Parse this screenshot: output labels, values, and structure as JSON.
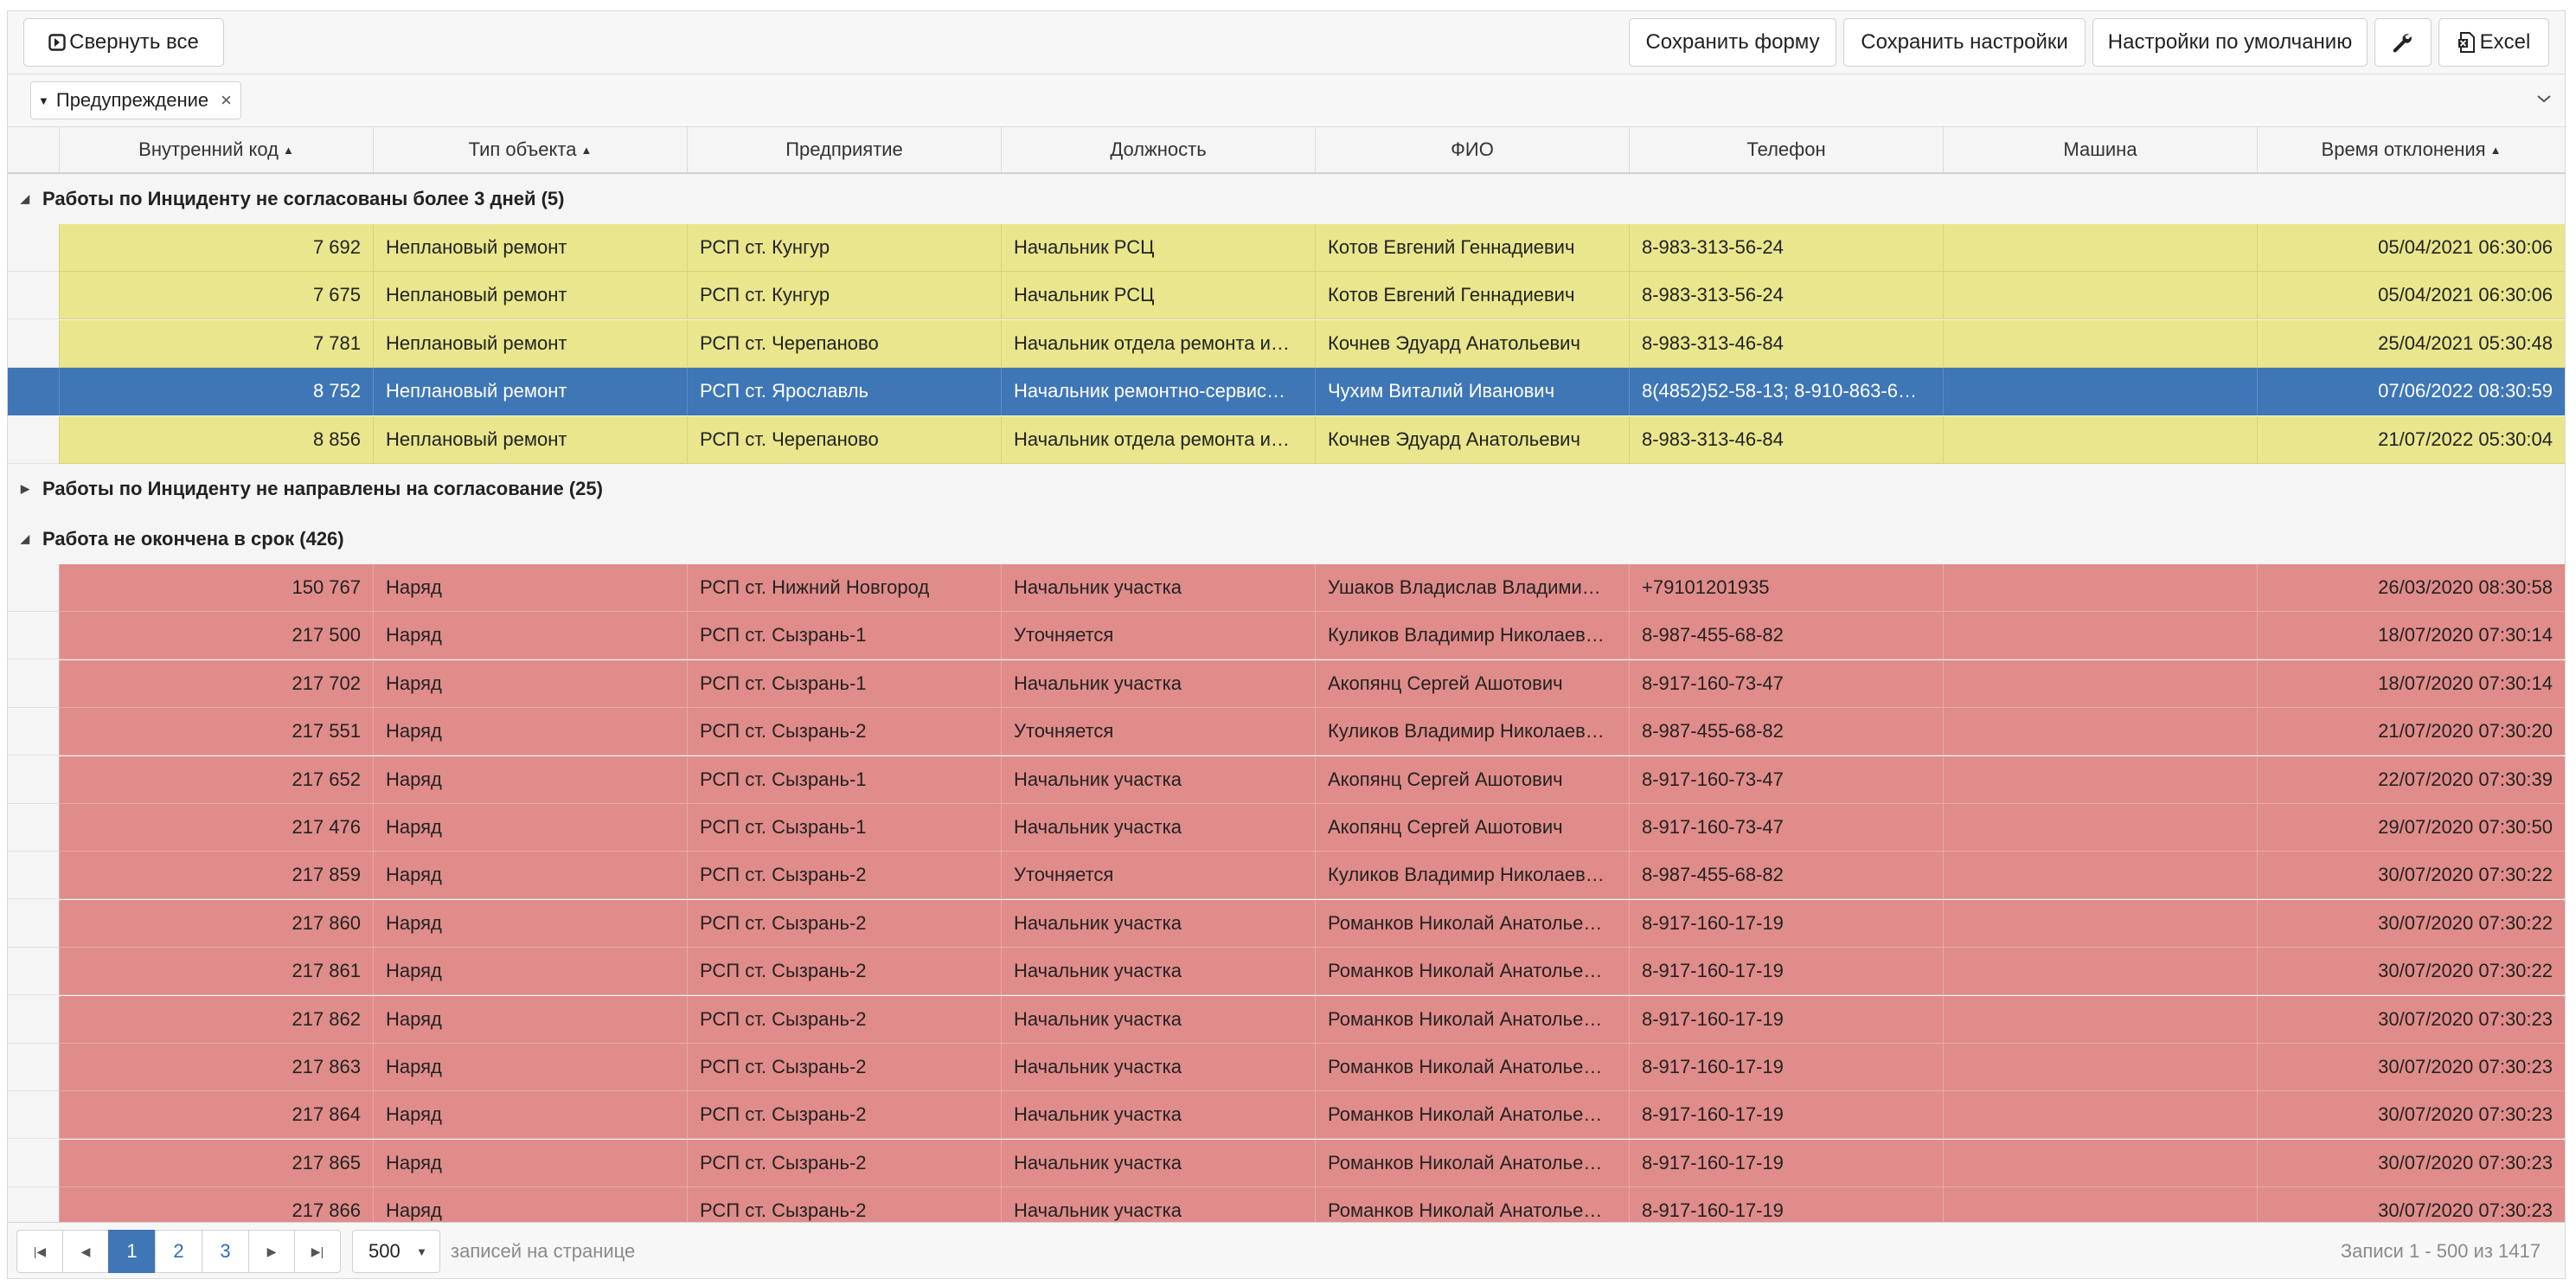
{
  "toolbar": {
    "collapse_label": "Свернуть все",
    "save_form_label": "Сохранить форму",
    "save_settings_label": "Сохранить настройки",
    "defaults_label": "Настройки по умолчанию",
    "excel_label": "Excel",
    "wrench_icon": "wrench-icon"
  },
  "filter": {
    "chip_label": "Предупреждение"
  },
  "columns": [
    {
      "label": "Внутренний код",
      "sorted": true
    },
    {
      "label": "Тип объекта",
      "sorted": true
    },
    {
      "label": "Предприятие",
      "sorted": false
    },
    {
      "label": "Должность",
      "sorted": false
    },
    {
      "label": "ФИО",
      "sorted": false
    },
    {
      "label": "Телефон",
      "sorted": false
    },
    {
      "label": "Машина",
      "sorted": false
    },
    {
      "label": "Время отклонения",
      "sorted": true
    }
  ],
  "groups": [
    {
      "label": "Работы по Инциденту не согласованы более 3 дней (5)",
      "expanded": true,
      "rows": [
        {
          "code": "7 692",
          "type": "Неплановый ремонт",
          "org": "РСП ст. Кунгур",
          "pos": "Начальник РСЦ",
          "fio": "Котов Евгений Геннадиевич",
          "phone": "8-983-313-56-24",
          "car": "",
          "time": "05/04/2021 06:30:06",
          "state": "yellow"
        },
        {
          "code": "7 675",
          "type": "Неплановый ремонт",
          "org": "РСП ст. Кунгур",
          "pos": "Начальник РСЦ",
          "fio": "Котов Евгений Геннадиевич",
          "phone": "8-983-313-56-24",
          "car": "",
          "time": "05/04/2021 06:30:06",
          "state": "yellow"
        },
        {
          "code": "7 781",
          "type": "Неплановый ремонт",
          "org": "РСП ст. Черепаново",
          "pos": "Начальник отдела ремонта и…",
          "fio": "Кочнев Эдуард Анатольевич",
          "phone": "8-983-313-46-84",
          "car": "",
          "time": "25/04/2021 05:30:48",
          "state": "yellow"
        },
        {
          "code": "8 752",
          "type": "Неплановый ремонт",
          "org": "РСП ст. Ярославль",
          "pos": "Начальник ремонтно-сервис…",
          "fio": "Чухим Виталий Иванович",
          "phone": "8(4852)52-58-13; 8-910-863-6…",
          "car": "",
          "time": "07/06/2022 08:30:59",
          "state": "sel"
        },
        {
          "code": "8 856",
          "type": "Неплановый ремонт",
          "org": "РСП ст. Черепаново",
          "pos": "Начальник отдела ремонта и…",
          "fio": "Кочнев Эдуард Анатольевич",
          "phone": "8-983-313-46-84",
          "car": "",
          "time": "21/07/2022 05:30:04",
          "state": "yellow"
        }
      ]
    },
    {
      "label": "Работы по Инциденту не направлены на согласование (25)",
      "expanded": false,
      "rows": []
    },
    {
      "label": "Работа не окончена в срок (426)",
      "expanded": true,
      "rows": [
        {
          "code": "150 767",
          "type": "Наряд",
          "org": "РСП ст. Нижний Новгород",
          "pos": "Начальник участка",
          "fio": "Ушаков Владислав Владими…",
          "phone": "+79101201935",
          "car": "",
          "time": "26/03/2020 08:30:58",
          "state": "red"
        },
        {
          "code": "217 500",
          "type": "Наряд",
          "org": "РСП ст. Сызрань-1",
          "pos": "Уточняется",
          "fio": "Куликов Владимир Николаев…",
          "phone": "8-987-455-68-82",
          "car": "",
          "time": "18/07/2020 07:30:14",
          "state": "red"
        },
        {
          "code": "217 702",
          "type": "Наряд",
          "org": "РСП ст. Сызрань-1",
          "pos": "Начальник участка",
          "fio": "Акопянц Сергей Ашотович",
          "phone": "8-917-160-73-47",
          "car": "",
          "time": "18/07/2020 07:30:14",
          "state": "red"
        },
        {
          "code": "217 551",
          "type": "Наряд",
          "org": "РСП ст. Сызрань-2",
          "pos": "Уточняется",
          "fio": "Куликов Владимир Николаев…",
          "phone": "8-987-455-68-82",
          "car": "",
          "time": "21/07/2020 07:30:20",
          "state": "red"
        },
        {
          "code": "217 652",
          "type": "Наряд",
          "org": "РСП ст. Сызрань-1",
          "pos": "Начальник участка",
          "fio": "Акопянц Сергей Ашотович",
          "phone": "8-917-160-73-47",
          "car": "",
          "time": "22/07/2020 07:30:39",
          "state": "red"
        },
        {
          "code": "217 476",
          "type": "Наряд",
          "org": "РСП ст. Сызрань-1",
          "pos": "Начальник участка",
          "fio": "Акопянц Сергей Ашотович",
          "phone": "8-917-160-73-47",
          "car": "",
          "time": "29/07/2020 07:30:50",
          "state": "red"
        },
        {
          "code": "217 859",
          "type": "Наряд",
          "org": "РСП ст. Сызрань-2",
          "pos": "Уточняется",
          "fio": "Куликов Владимир Николаев…",
          "phone": "8-987-455-68-82",
          "car": "",
          "time": "30/07/2020 07:30:22",
          "state": "red"
        },
        {
          "code": "217 860",
          "type": "Наряд",
          "org": "РСП ст. Сызрань-2",
          "pos": "Начальник участка",
          "fio": "Романков Николай Анатолье…",
          "phone": "8-917-160-17-19",
          "car": "",
          "time": "30/07/2020 07:30:22",
          "state": "red"
        },
        {
          "code": "217 861",
          "type": "Наряд",
          "org": "РСП ст. Сызрань-2",
          "pos": "Начальник участка",
          "fio": "Романков Николай Анатолье…",
          "phone": "8-917-160-17-19",
          "car": "",
          "time": "30/07/2020 07:30:22",
          "state": "red"
        },
        {
          "code": "217 862",
          "type": "Наряд",
          "org": "РСП ст. Сызрань-2",
          "pos": "Начальник участка",
          "fio": "Романков Николай Анатолье…",
          "phone": "8-917-160-17-19",
          "car": "",
          "time": "30/07/2020 07:30:23",
          "state": "red"
        },
        {
          "code": "217 863",
          "type": "Наряд",
          "org": "РСП ст. Сызрань-2",
          "pos": "Начальник участка",
          "fio": "Романков Николай Анатолье…",
          "phone": "8-917-160-17-19",
          "car": "",
          "time": "30/07/2020 07:30:23",
          "state": "red"
        },
        {
          "code": "217 864",
          "type": "Наряд",
          "org": "РСП ст. Сызрань-2",
          "pos": "Начальник участка",
          "fio": "Романков Николай Анатолье…",
          "phone": "8-917-160-17-19",
          "car": "",
          "time": "30/07/2020 07:30:23",
          "state": "red"
        },
        {
          "code": "217 865",
          "type": "Наряд",
          "org": "РСП ст. Сызрань-2",
          "pos": "Начальник участка",
          "fio": "Романков Николай Анатолье…",
          "phone": "8-917-160-17-19",
          "car": "",
          "time": "30/07/2020 07:30:23",
          "state": "red"
        },
        {
          "code": "217 866",
          "type": "Наряд",
          "org": "РСП ст. Сызрань-2",
          "pos": "Начальник участка",
          "fio": "Романков Николай Анатолье…",
          "phone": "8-917-160-17-19",
          "car": "",
          "time": "30/07/2020 07:30:23",
          "state": "red"
        }
      ]
    }
  ],
  "pager": {
    "pages": [
      "1",
      "2",
      "3"
    ],
    "current_page": "1",
    "page_size": "500",
    "page_size_label": "записей на странице",
    "records_info": "Записи 1 - 500 из 1417"
  },
  "colors": {
    "warning_row": "#e9e68d",
    "overdue_row": "#e08c8a",
    "selected_row": "#3f76b6"
  }
}
